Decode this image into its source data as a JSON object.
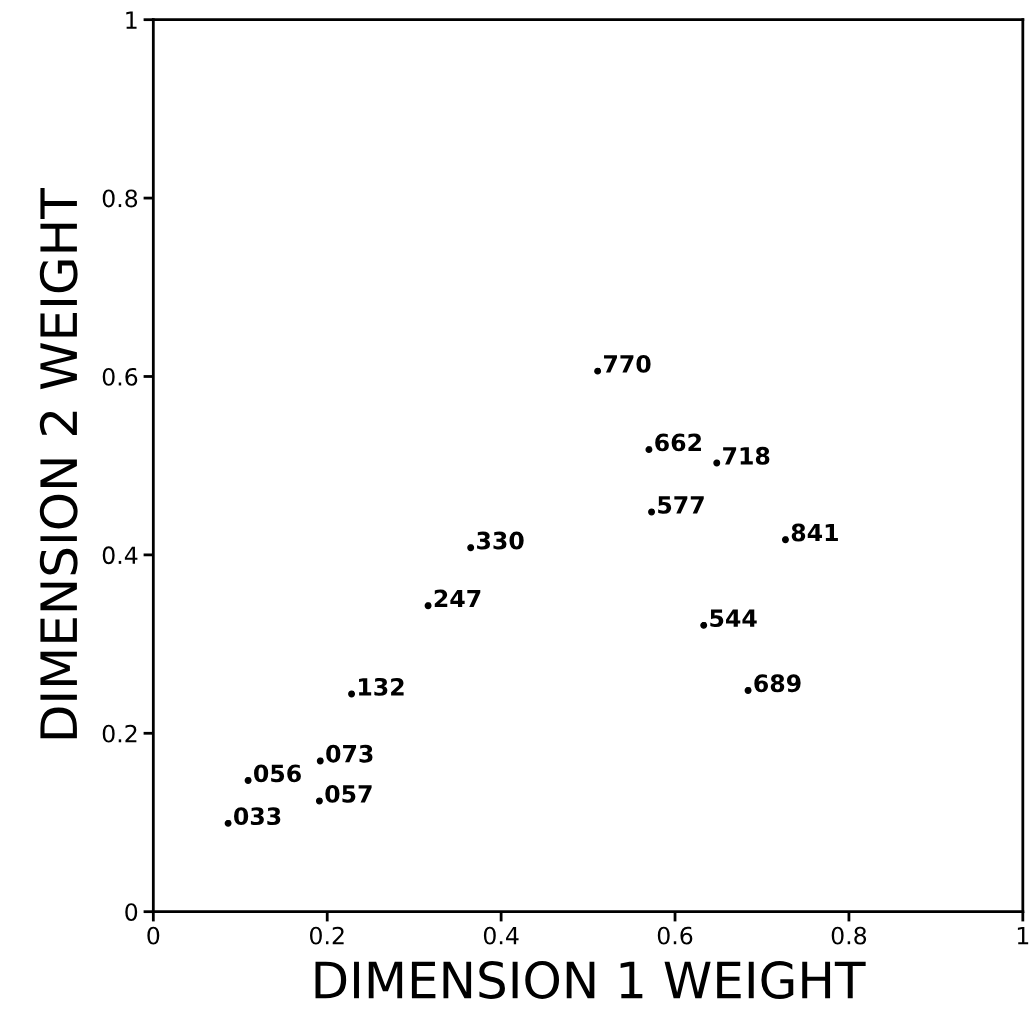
{
  "chart_data": {
    "type": "scatter",
    "xlabel": "DIMENSION 1 WEIGHT",
    "ylabel": "DIMENSION 2 WEIGHT",
    "series": [
      {
        "color": "#000000",
        "x": [
          0.511,
          0.57,
          0.648,
          0.573,
          0.727,
          0.365,
          0.316,
          0.633,
          0.684,
          0.228,
          0.192,
          0.109,
          0.191,
          0.086
        ],
        "values": [
          0.606,
          0.518,
          0.503,
          0.448,
          0.417,
          0.408,
          0.343,
          0.321,
          0.248,
          0.244,
          0.169,
          0.147,
          0.124,
          0.099
        ]
      }
    ],
    "annotations": [
      {
        "text": ".770",
        "x": 0.511,
        "y": 0.606
      },
      {
        "text": ".662",
        "x": 0.57,
        "y": 0.518
      },
      {
        "text": ".718",
        "x": 0.648,
        "y": 0.503
      },
      {
        "text": ".577",
        "x": 0.573,
        "y": 0.448
      },
      {
        "text": ".841",
        "x": 0.727,
        "y": 0.417
      },
      {
        "text": ".330",
        "x": 0.365,
        "y": 0.408
      },
      {
        "text": ".247",
        "x": 0.316,
        "y": 0.343
      },
      {
        "text": ".544",
        "x": 0.633,
        "y": 0.321
      },
      {
        "text": ".689",
        "x": 0.684,
        "y": 0.248
      },
      {
        "text": ".132",
        "x": 0.228,
        "y": 0.244
      },
      {
        "text": ".073",
        "x": 0.192,
        "y": 0.169
      },
      {
        "text": ".056",
        "x": 0.109,
        "y": 0.147
      },
      {
        "text": ".057",
        "x": 0.191,
        "y": 0.124
      },
      {
        "text": ".033",
        "x": 0.086,
        "y": 0.099
      }
    ],
    "xlim": [
      0,
      1
    ],
    "ylim": [
      0,
      1
    ],
    "xticks": [
      0,
      0.2,
      0.4,
      0.6,
      0.8,
      1
    ],
    "yticks": [
      0,
      0.2,
      0.4,
      0.6,
      0.8,
      1
    ],
    "marker": "circle",
    "grid": false
  }
}
